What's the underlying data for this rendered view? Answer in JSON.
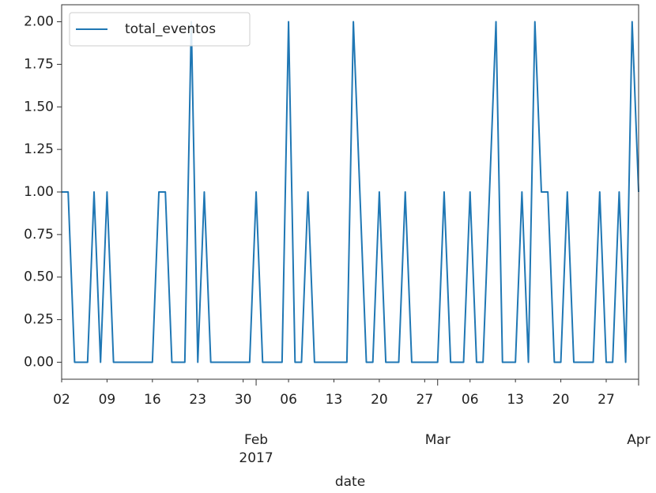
{
  "chart_data": {
    "type": "line",
    "x_label": "date",
    "x_year_label": "2017",
    "xlim": [
      "2017-01-02",
      "2017-04-01"
    ],
    "xticks": [
      {
        "value": "2017-01-02",
        "label": "02"
      },
      {
        "value": "2017-01-09",
        "label": "09"
      },
      {
        "value": "2017-01-16",
        "label": "16"
      },
      {
        "value": "2017-01-23",
        "label": "23"
      },
      {
        "value": "2017-01-30",
        "label": "30"
      },
      {
        "value": "2017-02-06",
        "label": "06"
      },
      {
        "value": "2017-02-13",
        "label": "13"
      },
      {
        "value": "2017-02-20",
        "label": "20"
      },
      {
        "value": "2017-02-27",
        "label": "27"
      },
      {
        "value": "2017-03-06",
        "label": "06"
      },
      {
        "value": "2017-03-13",
        "label": "13"
      },
      {
        "value": "2017-03-20",
        "label": "20"
      },
      {
        "value": "2017-03-27",
        "label": "27"
      }
    ],
    "xticks_major": [
      {
        "value": "2017-02-01",
        "label": "Feb"
      },
      {
        "value": "2017-03-01",
        "label": "Mar"
      },
      {
        "value": "2017-04-01",
        "label": "Apr"
      }
    ],
    "ylim": [
      -0.1,
      2.1
    ],
    "yticks": [
      {
        "value": 0,
        "label": "0.00"
      },
      {
        "value": 0.25,
        "label": "0.25"
      },
      {
        "value": 0.5,
        "label": "0.50"
      },
      {
        "value": 0.75,
        "label": "0.75"
      },
      {
        "value": 1,
        "label": "1.00"
      },
      {
        "value": 1.25,
        "label": "1.25"
      },
      {
        "value": 1.5,
        "label": "1.50"
      },
      {
        "value": 1.75,
        "label": "1.75"
      },
      {
        "value": 2,
        "label": "2.00"
      }
    ],
    "legend": "upper left",
    "x": [
      "2017-01-02",
      "2017-01-03",
      "2017-01-04",
      "2017-01-05",
      "2017-01-06",
      "2017-01-07",
      "2017-01-08",
      "2017-01-09",
      "2017-01-10",
      "2017-01-11",
      "2017-01-12",
      "2017-01-13",
      "2017-01-14",
      "2017-01-15",
      "2017-01-16",
      "2017-01-17",
      "2017-01-18",
      "2017-01-19",
      "2017-01-20",
      "2017-01-21",
      "2017-01-22",
      "2017-01-23",
      "2017-01-24",
      "2017-01-25",
      "2017-01-26",
      "2017-01-27",
      "2017-01-28",
      "2017-01-29",
      "2017-01-30",
      "2017-01-31",
      "2017-02-01",
      "2017-02-02",
      "2017-02-03",
      "2017-02-04",
      "2017-02-05",
      "2017-02-06",
      "2017-02-07",
      "2017-02-08",
      "2017-02-09",
      "2017-02-10",
      "2017-02-11",
      "2017-02-12",
      "2017-02-13",
      "2017-02-14",
      "2017-02-15",
      "2017-02-16",
      "2017-02-17",
      "2017-02-18",
      "2017-02-19",
      "2017-02-20",
      "2017-02-21",
      "2017-02-22",
      "2017-02-23",
      "2017-02-24",
      "2017-02-25",
      "2017-02-26",
      "2017-02-27",
      "2017-02-28",
      "2017-03-01",
      "2017-03-02",
      "2017-03-03",
      "2017-03-04",
      "2017-03-05",
      "2017-03-06",
      "2017-03-07",
      "2017-03-08",
      "2017-03-09",
      "2017-03-10",
      "2017-03-11",
      "2017-03-12",
      "2017-03-13",
      "2017-03-14",
      "2017-03-15",
      "2017-03-16",
      "2017-03-17",
      "2017-03-18",
      "2017-03-19",
      "2017-03-20",
      "2017-03-21",
      "2017-03-22",
      "2017-03-23",
      "2017-03-24",
      "2017-03-25",
      "2017-03-26",
      "2017-03-27",
      "2017-03-28",
      "2017-03-29",
      "2017-03-30",
      "2017-03-31",
      "2017-04-01"
    ],
    "series": [
      {
        "name": "total_eventos",
        "color": "#1f77b4",
        "values": [
          1,
          1,
          0,
          0,
          0,
          1,
          0,
          1,
          0,
          0,
          0,
          0,
          0,
          0,
          0,
          1,
          1,
          0,
          0,
          0,
          2,
          0,
          1,
          0,
          0,
          0,
          0,
          0,
          0,
          0,
          1,
          0,
          0,
          0,
          0,
          2,
          0,
          0,
          1,
          0,
          0,
          0,
          0,
          0,
          0,
          2,
          1,
          0,
          0,
          1,
          0,
          0,
          0,
          1,
          0,
          0,
          0,
          0,
          0,
          1,
          0,
          0,
          0,
          1,
          0,
          0,
          1,
          2,
          0,
          0,
          0,
          1,
          0,
          2,
          1,
          1,
          0,
          0,
          1,
          0,
          0,
          0,
          0,
          1,
          0,
          0,
          1,
          0,
          2,
          1
        ]
      }
    ]
  }
}
